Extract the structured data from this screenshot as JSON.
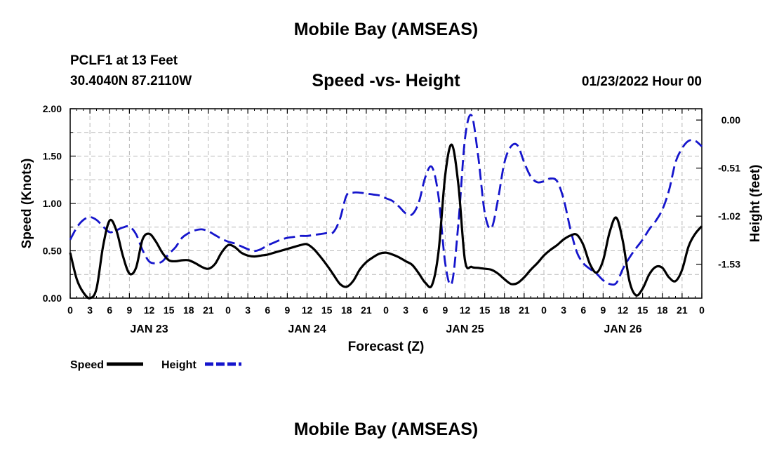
{
  "header": {
    "title": "Mobile Bay (AMSEAS)",
    "station": "PCLF1 at 13 Feet",
    "coordinates": "30.4040N  87.2110W",
    "subtitle": "Speed -vs- Height",
    "datetime": "01/23/2022 Hour 00"
  },
  "footer": {
    "repeat_title": "Mobile Bay (AMSEAS)"
  },
  "chart_data": {
    "type": "line",
    "title": "Speed -vs- Height",
    "xlabel": "Forecast (Z)",
    "ylabel": "Speed (Knots)",
    "y2label": "Height (feet)",
    "xlim": [
      0,
      96
    ],
    "ylim": [
      0,
      2.0
    ],
    "y2lim": [
      -1.89,
      0.12
    ],
    "grid": true,
    "x_tick_values": [
      0,
      3,
      6,
      9,
      12,
      15,
      18,
      21,
      24,
      27,
      30,
      33,
      36,
      39,
      42,
      45,
      48,
      51,
      54,
      57,
      60,
      63,
      66,
      69,
      72,
      75,
      78,
      81,
      84,
      87,
      90,
      93,
      96
    ],
    "x_tick_labels": [
      "0",
      "3",
      "6",
      "9",
      "12",
      "15",
      "18",
      "21",
      "0",
      "3",
      "6",
      "9",
      "12",
      "15",
      "18",
      "21",
      "0",
      "3",
      "6",
      "9",
      "12",
      "15",
      "18",
      "21",
      "0",
      "3",
      "6",
      "9",
      "12",
      "15",
      "18",
      "21",
      "0"
    ],
    "day_labels": [
      {
        "text": "JAN 23",
        "x": 12
      },
      {
        "text": "JAN 24",
        "x": 36
      },
      {
        "text": "JAN 25",
        "x": 60
      },
      {
        "text": "JAN 26",
        "x": 84
      }
    ],
    "y_ticks": [
      0,
      0.5,
      1.0,
      1.5,
      2.0
    ],
    "y_tick_labels": [
      "0.00",
      "0.50",
      "1.00",
      "1.50",
      "2.00"
    ],
    "y2_ticks": [
      0.0,
      -0.51,
      -1.02,
      -1.53
    ],
    "y2_tick_labels": [
      "0.00",
      "-0.51",
      "-1.02",
      "-1.53"
    ],
    "legend": "bottom-left",
    "series": [
      {
        "name": "Speed",
        "axis": "left",
        "color": "#000000",
        "style": "solid",
        "x": [
          0,
          1,
          2,
          3,
          4,
          5,
          6,
          7,
          8,
          9,
          10,
          11,
          12,
          13,
          14,
          15,
          16,
          17,
          18,
          19,
          20,
          21,
          22,
          23,
          24,
          25,
          26,
          27,
          28,
          29,
          30,
          31,
          32,
          33,
          34,
          35,
          36,
          37,
          38,
          39,
          40,
          41,
          42,
          43,
          44,
          45,
          46,
          47,
          48,
          49,
          50,
          51,
          52,
          53,
          54,
          55,
          56,
          57,
          58,
          59,
          60,
          61,
          62,
          63,
          64,
          65,
          66,
          67,
          68,
          69,
          70,
          71,
          72,
          73,
          74,
          75,
          76,
          77,
          78,
          79,
          80,
          81,
          82,
          83,
          84,
          85,
          86,
          87,
          88,
          89,
          90,
          91,
          92,
          93,
          94,
          95,
          96
        ],
        "values": [
          0.48,
          0.2,
          0.06,
          0.0,
          0.1,
          0.55,
          0.82,
          0.72,
          0.45,
          0.26,
          0.32,
          0.62,
          0.68,
          0.6,
          0.48,
          0.4,
          0.39,
          0.4,
          0.4,
          0.37,
          0.33,
          0.31,
          0.36,
          0.48,
          0.56,
          0.54,
          0.48,
          0.45,
          0.44,
          0.45,
          0.46,
          0.48,
          0.5,
          0.52,
          0.54,
          0.56,
          0.57,
          0.52,
          0.44,
          0.35,
          0.25,
          0.15,
          0.12,
          0.18,
          0.3,
          0.38,
          0.43,
          0.47,
          0.48,
          0.46,
          0.43,
          0.39,
          0.35,
          0.26,
          0.16,
          0.14,
          0.5,
          1.3,
          1.62,
          1.2,
          0.4,
          0.33,
          0.32,
          0.31,
          0.3,
          0.26,
          0.2,
          0.15,
          0.16,
          0.22,
          0.3,
          0.37,
          0.45,
          0.51,
          0.56,
          0.62,
          0.66,
          0.67,
          0.56,
          0.36,
          0.27,
          0.4,
          0.7,
          0.85,
          0.6,
          0.18,
          0.03,
          0.1,
          0.25,
          0.33,
          0.32,
          0.22,
          0.18,
          0.3,
          0.55,
          0.68,
          0.76
        ]
      },
      {
        "name": "Height",
        "axis": "right",
        "color": "#1515cc",
        "style": "dashed",
        "x": [
          0,
          1,
          2,
          3,
          4,
          5,
          6,
          7,
          8,
          9,
          10,
          11,
          12,
          13,
          14,
          15,
          16,
          17,
          18,
          19,
          20,
          21,
          22,
          23,
          24,
          25,
          26,
          27,
          28,
          29,
          30,
          31,
          32,
          33,
          34,
          35,
          36,
          37,
          38,
          39,
          40,
          41,
          42,
          43,
          44,
          45,
          46,
          47,
          48,
          49,
          50,
          51,
          52,
          53,
          54,
          55,
          56,
          57,
          58,
          59,
          60,
          61,
          62,
          63,
          64,
          65,
          66,
          67,
          68,
          69,
          70,
          71,
          72,
          73,
          74,
          75,
          76,
          77,
          78,
          79,
          80,
          81,
          82,
          83,
          84,
          85,
          86,
          87,
          88,
          89,
          90,
          91,
          92,
          93,
          94,
          95,
          96
        ],
        "values": [
          -1.27,
          -1.14,
          -1.06,
          -1.03,
          -1.06,
          -1.13,
          -1.19,
          -1.17,
          -1.14,
          -1.13,
          -1.21,
          -1.38,
          -1.5,
          -1.52,
          -1.5,
          -1.42,
          -1.35,
          -1.25,
          -1.2,
          -1.17,
          -1.16,
          -1.18,
          -1.22,
          -1.26,
          -1.29,
          -1.31,
          -1.34,
          -1.37,
          -1.39,
          -1.37,
          -1.33,
          -1.3,
          -1.27,
          -1.25,
          -1.24,
          -1.23,
          -1.23,
          -1.22,
          -1.21,
          -1.2,
          -1.19,
          -1.05,
          -0.8,
          -0.77,
          -0.77,
          -0.78,
          -0.79,
          -0.8,
          -0.83,
          -0.86,
          -0.92,
          -0.99,
          -1.0,
          -0.87,
          -0.6,
          -0.5,
          -0.82,
          -1.52,
          -1.73,
          -1.1,
          -0.2,
          0.05,
          -0.38,
          -0.98,
          -1.15,
          -0.85,
          -0.45,
          -0.28,
          -0.27,
          -0.45,
          -0.6,
          -0.66,
          -0.65,
          -0.62,
          -0.65,
          -0.84,
          -1.15,
          -1.4,
          -1.52,
          -1.58,
          -1.63,
          -1.7,
          -1.74,
          -1.73,
          -1.58,
          -1.46,
          -1.36,
          -1.27,
          -1.16,
          -1.07,
          -0.95,
          -0.75,
          -0.45,
          -0.3,
          -0.22,
          -0.22,
          -0.28
        ]
      }
    ]
  }
}
